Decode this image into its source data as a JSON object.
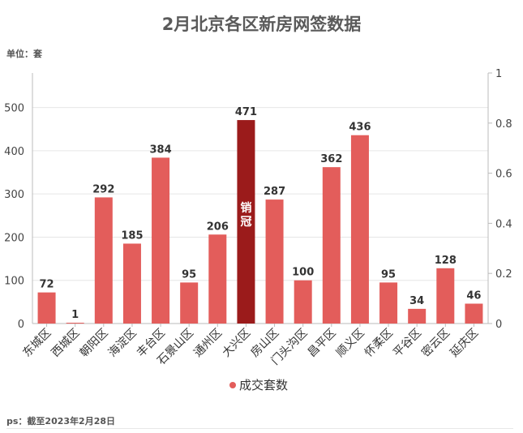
{
  "title": "2月北京各区新房网签数据",
  "unit_label": "单位：套",
  "footnote": "ps：截至2023年2月28日",
  "chart_data": {
    "type": "bar",
    "title": "2月北京各区新房网签数据",
    "categories": [
      "东城区",
      "西城区",
      "朝阳区",
      "海淀区",
      "丰台区",
      "石景山区",
      "通州区",
      "大兴区",
      "房山区",
      "门头沟区",
      "昌平区",
      "顺义区",
      "怀柔区",
      "平谷区",
      "密云区",
      "延庆区"
    ],
    "series": [
      {
        "name": "成交套数",
        "values": [
          72,
          1,
          292,
          185,
          384,
          95,
          206,
          471,
          287,
          100,
          362,
          436,
          95,
          34,
          128,
          46
        ]
      }
    ],
    "ylim": [
      0,
      580
    ],
    "yticks": [
      0,
      100,
      200,
      300,
      400,
      500
    ],
    "y2lim": [
      0,
      1
    ],
    "y2ticks": [
      "0",
      "0.2",
      "0.4",
      "0.6",
      "0.8",
      "1"
    ],
    "highlight": {
      "category": "大兴区",
      "label": "销冠",
      "color": "#9b1b1b"
    },
    "bar_color": "#e35d5b",
    "grid": true,
    "legend_position": "bottom"
  }
}
